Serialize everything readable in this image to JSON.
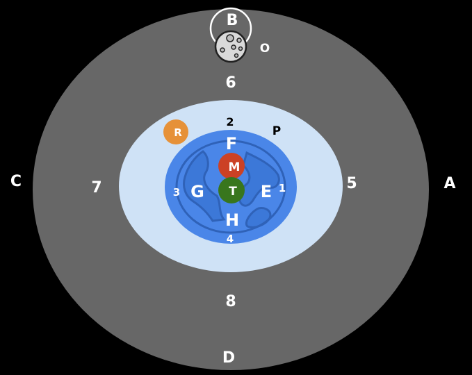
{
  "labels": {
    "A": "A",
    "B": "B",
    "C": "C",
    "D": "D",
    "E": "E",
    "F": "F",
    "G": "G",
    "H": "H",
    "M": "M",
    "T": "T",
    "R": "R",
    "P": "P",
    "O": "O",
    "n1": "1",
    "n2": "2",
    "n3": "3",
    "n4": "4",
    "n5": "5",
    "n6": "6",
    "n7": "7",
    "n8": "8"
  },
  "colors": {
    "background": "#000000",
    "outer_ellipse": "#676767",
    "light_blue_ring": "#cfe2f6",
    "earth_ocean": "#4a86e8",
    "earth_land": "#3c78d8",
    "M_ball": "#cc4125",
    "T_ball": "#38761d",
    "R_ball": "#e69138",
    "moon": "#d9d9d9"
  },
  "icons": {
    "moon": "moon-icon",
    "earth": "earth-icon"
  }
}
